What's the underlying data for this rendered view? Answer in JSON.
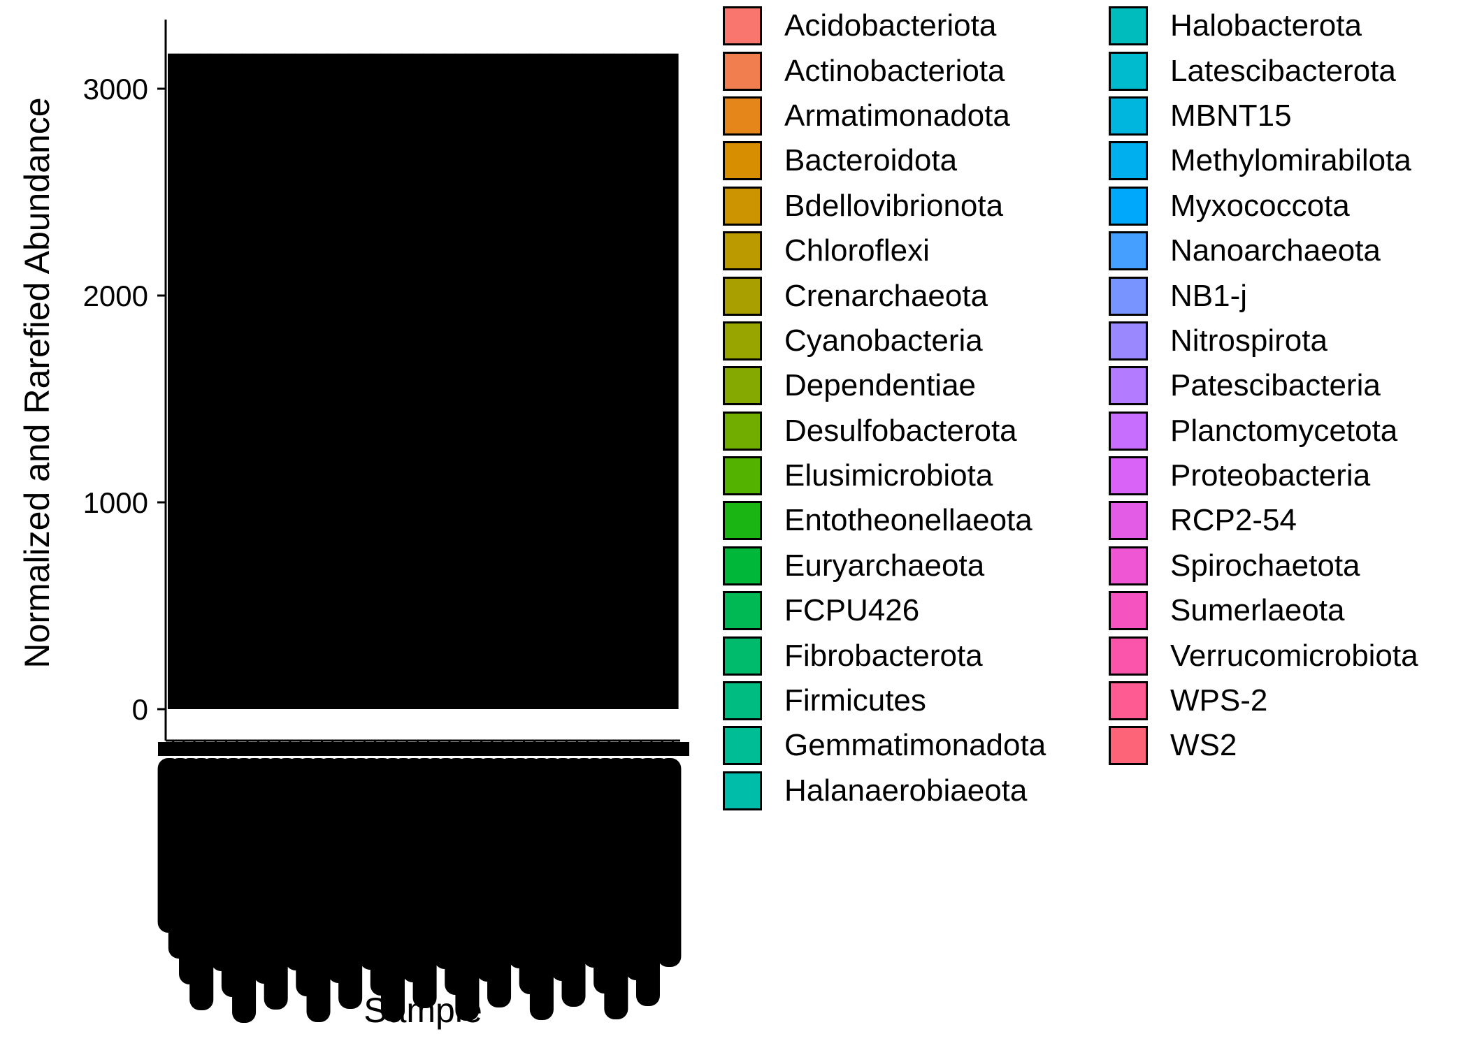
{
  "chart_data": {
    "type": "bar",
    "stacked": true,
    "title": "",
    "xlabel": "Sample",
    "ylabel": "Normalized and Rarefied Abundance",
    "ylim": [
      0,
      3300
    ],
    "yticks": [
      0,
      1000,
      2000,
      3000
    ],
    "total_per_sample": 3170,
    "sample_count": 48,
    "bar_fill": "#000000",
    "legend_position": "right",
    "legend_columns": 2,
    "series": [
      {
        "name": "Acidobacteriota",
        "color": "#F8766D"
      },
      {
        "name": "Actinobacteriota",
        "color": "#F07E4E"
      },
      {
        "name": "Armatimonadota",
        "color": "#E4861A"
      },
      {
        "name": "Bacteroidota",
        "color": "#D78E00"
      },
      {
        "name": "Bdellovibrionota",
        "color": "#CB9400"
      },
      {
        "name": "Chloroflexi",
        "color": "#BB9A00"
      },
      {
        "name": "Crenarchaeota",
        "color": "#AA9F00"
      },
      {
        "name": "Cyanobacteria",
        "color": "#98A400"
      },
      {
        "name": "Dependentiae",
        "color": "#86A900"
      },
      {
        "name": "Desulfobacterota",
        "color": "#70AD00"
      },
      {
        "name": "Elusimicrobiota",
        "color": "#53B100"
      },
      {
        "name": "Entotheonellaeota",
        "color": "#1AB413"
      },
      {
        "name": "Euryarchaeota",
        "color": "#00B73A"
      },
      {
        "name": "FCPU426",
        "color": "#00B954"
      },
      {
        "name": "Fibrobacterota",
        "color": "#00BB6B"
      },
      {
        "name": "Firmicutes",
        "color": "#00BC81"
      },
      {
        "name": "Gemmatimonadota",
        "color": "#00BD95"
      },
      {
        "name": "Halanaerobiaeota",
        "color": "#00BDA9"
      },
      {
        "name": "Halobacterota",
        "color": "#00BCBC"
      },
      {
        "name": "Latescibacterota",
        "color": "#00BACE"
      },
      {
        "name": "MBNT15",
        "color": "#00B6DF"
      },
      {
        "name": "Methylomirabilota",
        "color": "#00B0EE"
      },
      {
        "name": "Myxococcota",
        "color": "#00A8FC"
      },
      {
        "name": "Nanoarchaeota",
        "color": "#459FFF"
      },
      {
        "name": "NB1-j",
        "color": "#7894FF"
      },
      {
        "name": "Nitrospirota",
        "color": "#9A88FF"
      },
      {
        "name": "Patescibacteria",
        "color": "#B37BFF"
      },
      {
        "name": "Planctomycetota",
        "color": "#C76EFF"
      },
      {
        "name": "Proteobacteria",
        "color": "#D863F6"
      },
      {
        "name": "RCP2-54",
        "color": "#E35CE6"
      },
      {
        "name": "Spirochaetota",
        "color": "#EE56D4"
      },
      {
        "name": "Sumerlaeota",
        "color": "#F553C0"
      },
      {
        "name": "Verrucomicrobiota",
        "color": "#FA55AA"
      },
      {
        "name": "WPS-2",
        "color": "#FD5B92"
      },
      {
        "name": "WS2",
        "color": "#FE6478"
      }
    ]
  }
}
